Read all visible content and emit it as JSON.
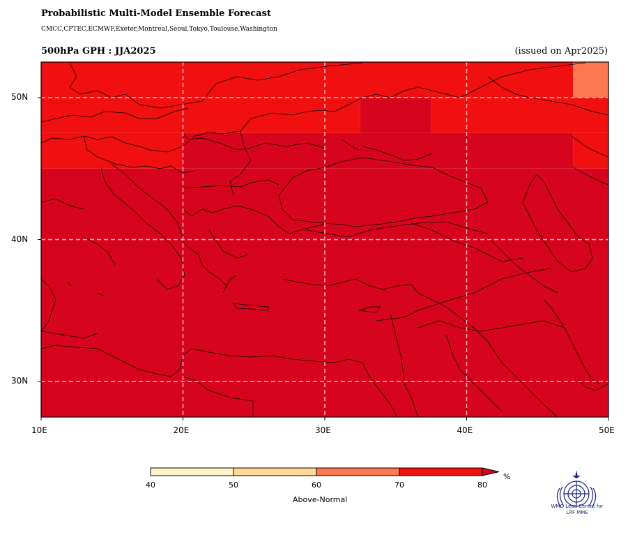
{
  "header": {
    "title": "Probabilistic Multi-Model Ensemble Forecast",
    "models": "CMCC,CPTEC,ECMWF,Exeter,Montreal,Seoul,Tokyo,Toulouse,Washington",
    "subtitle": "500hPa GPH : JJA2025",
    "issued": "(issued on Apr2025)"
  },
  "map": {
    "lon_range": [
      10,
      50
    ],
    "lat_range": [
      27.5,
      52.5
    ],
    "x_ticks": [
      "10E",
      "20E",
      "30E",
      "40E",
      "50E"
    ],
    "y_ticks": [
      "50N",
      "40N",
      "30N"
    ],
    "gridlines": true,
    "gridline_style": "dashed",
    "category_colors": {
      "60-70": "#fd7750",
      "70-80": "#f01010",
      "80+": "#d7041e"
    },
    "cells": [
      {
        "lon": [
          10,
          47.5
        ],
        "lat": [
          50,
          52.5
        ],
        "cat": "70-80"
      },
      {
        "lon": [
          47.5,
          50
        ],
        "lat": [
          50,
          52.5
        ],
        "cat": "60-70"
      },
      {
        "lon": [
          10,
          32.5
        ],
        "lat": [
          47.5,
          50
        ],
        "cat": "70-80"
      },
      {
        "lon": [
          32.5,
          37.5
        ],
        "lat": [
          47.5,
          50
        ],
        "cat": "80+"
      },
      {
        "lon": [
          37.5,
          50
        ],
        "lat": [
          47.5,
          50
        ],
        "cat": "70-80"
      },
      {
        "lon": [
          10,
          20
        ],
        "lat": [
          45,
          47.5
        ],
        "cat": "70-80"
      },
      {
        "lon": [
          20,
          47.5
        ],
        "lat": [
          45,
          47.5
        ],
        "cat": "80+"
      },
      {
        "lon": [
          47.5,
          50
        ],
        "lat": [
          45,
          47.5
        ],
        "cat": "70-80"
      },
      {
        "lon": [
          10,
          50
        ],
        "lat": [
          27.5,
          45
        ],
        "cat": "80+"
      }
    ]
  },
  "colorbar": {
    "ticks": [
      "40",
      "50",
      "60",
      "70",
      "80"
    ],
    "colors": [
      "#fff5c8",
      "#fed897",
      "#fd7750",
      "#f01010"
    ],
    "extend_color": "#d7041e",
    "unit": "%",
    "label": "Above-Normal"
  },
  "logo": {
    "line1": "WMO Lead Centre for",
    "line2": "LRF MME"
  }
}
